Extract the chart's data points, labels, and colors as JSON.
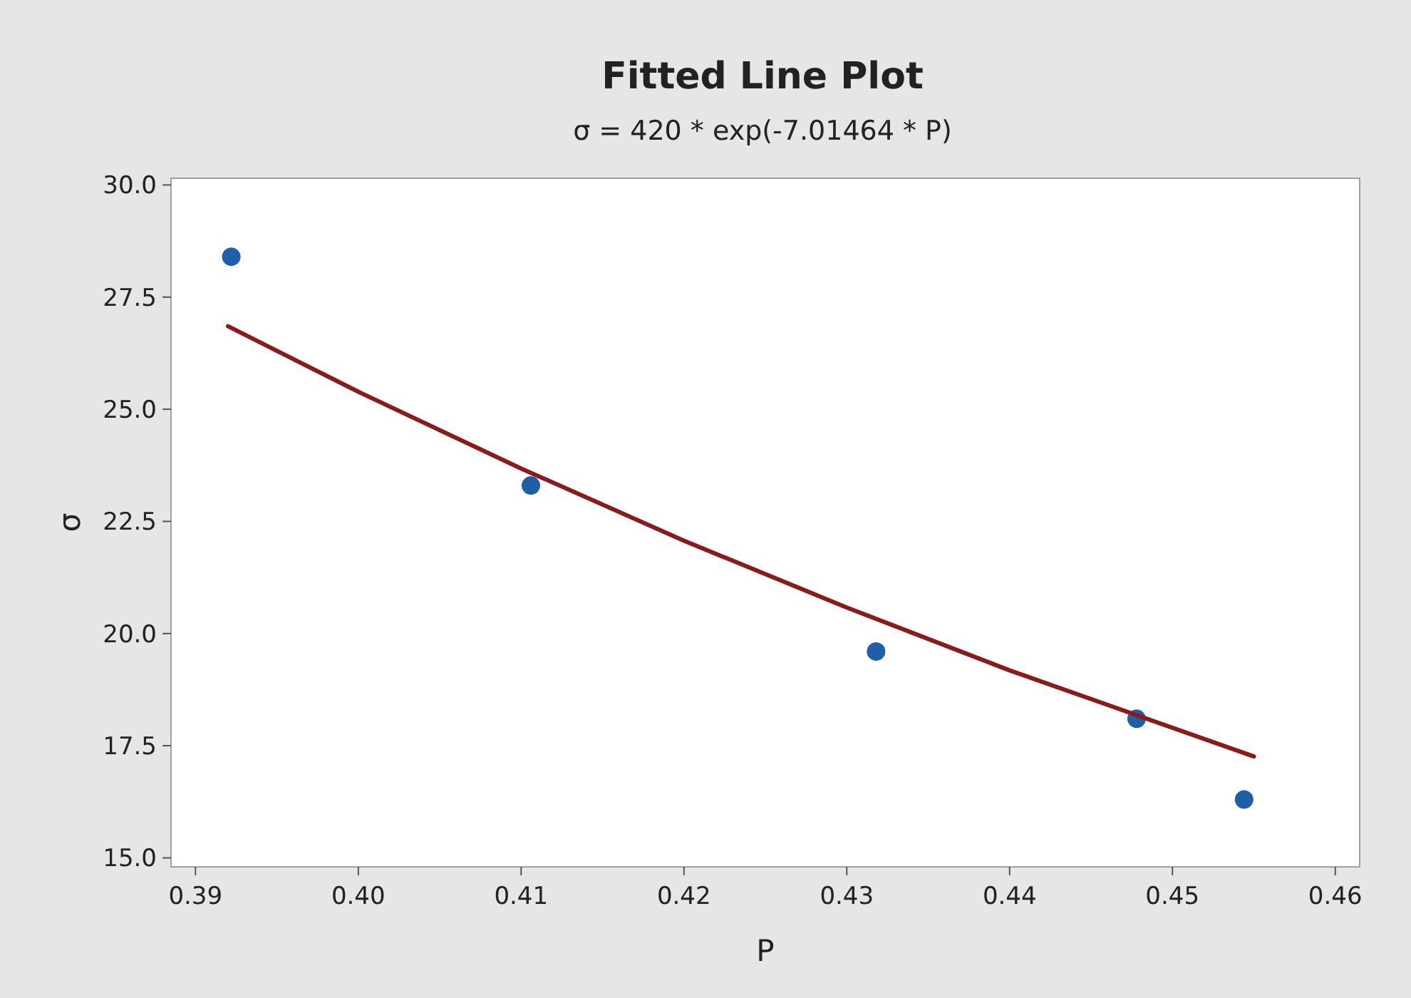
{
  "chart_data": {
    "type": "scatter",
    "title": "Fitted Line Plot",
    "subtitle": "σ = 420 * exp(-7.01464 * P)",
    "xlabel": "P",
    "ylabel": "σ",
    "x": [
      0.3922,
      0.4106,
      0.4318,
      0.4478,
      0.4544
    ],
    "series": [
      {
        "color": "#1f5fa8",
        "marker": "circle",
        "values": [
          28.4,
          23.3,
          19.6,
          18.1,
          16.3
        ]
      },
      {
        "type": "line",
        "color": "#8b1a1a",
        "marker": "none",
        "line_style": "solid",
        "x": [
          0.392,
          0.4,
          0.41,
          0.42,
          0.43,
          0.44,
          0.455
        ],
        "values": [
          26.85,
          25.39,
          23.68,
          22.07,
          20.58,
          19.18,
          17.26
        ]
      }
    ],
    "xlim": [
      0.3885,
      0.4615
    ],
    "ylim": [
      14.8,
      30.15
    ],
    "xticks": [
      {
        "value": 0.39,
        "label": "0.39"
      },
      {
        "value": 0.4,
        "label": "0.40"
      },
      {
        "value": 0.41,
        "label": "0.41"
      },
      {
        "value": 0.42,
        "label": "0.42"
      },
      {
        "value": 0.43,
        "label": "0.43"
      },
      {
        "value": 0.44,
        "label": "0.44"
      },
      {
        "value": 0.45,
        "label": "0.45"
      },
      {
        "value": 0.46,
        "label": "0.46"
      }
    ],
    "yticks": [
      {
        "value": 15,
        "label": "15.0"
      },
      {
        "value": 17.5,
        "label": "17.5"
      },
      {
        "value": 20,
        "label": "20.0"
      },
      {
        "value": 22.5,
        "label": "22.5"
      },
      {
        "value": 25,
        "label": "25.0"
      },
      {
        "value": 27.5,
        "label": "27.5"
      },
      {
        "value": 30,
        "label": "30.0"
      }
    ],
    "grid": false
  }
}
